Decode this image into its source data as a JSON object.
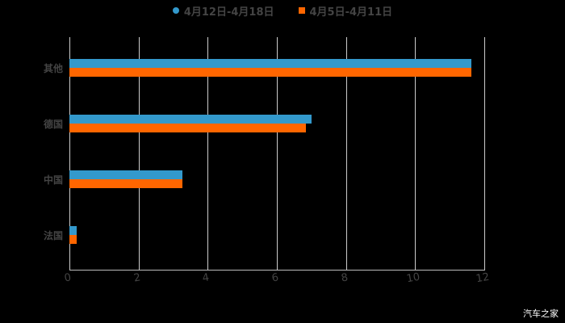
{
  "chart_data": {
    "type": "bar",
    "orientation": "horizontal",
    "title": "",
    "categories": [
      "其他",
      "德国",
      "中国",
      "法国"
    ],
    "series": [
      {
        "name": "4月12日-4月18日",
        "color": "#3399cc",
        "values": [
          11.63,
          7.0,
          3.27,
          0.2
        ]
      },
      {
        "name": "4月5日-4月11日",
        "color": "#ff6600",
        "values": [
          11.63,
          6.84,
          3.27,
          0.2
        ]
      }
    ],
    "xlabel": "",
    "ylabel": "",
    "xlim": [
      0,
      12
    ],
    "xticks": [
      "0",
      "2",
      "4",
      "6",
      "8",
      "10",
      "12"
    ],
    "grid": true,
    "legend_position": "top"
  },
  "legend": [
    {
      "label": "4月12日-4月18日",
      "color": "#3399cc",
      "marker": "circle"
    },
    {
      "label": "4月5日-4月11日",
      "color": "#ff6600",
      "marker": "square"
    }
  ],
  "watermark": "汽车之家"
}
